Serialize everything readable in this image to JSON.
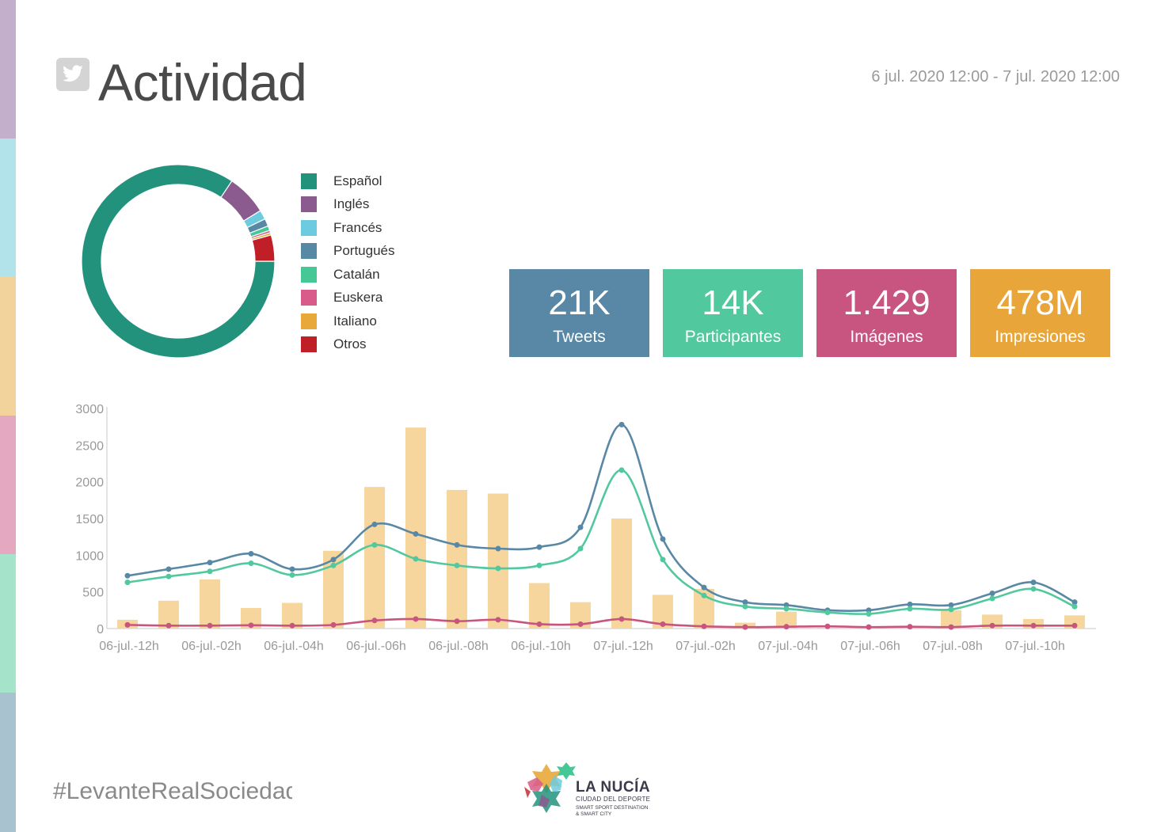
{
  "header": {
    "title": "Actividad",
    "date_range": "6 jul. 2020 12:00 - 7 jul. 2020 12:00",
    "icon": "twitter-icon"
  },
  "side_strip_colors": [
    "#c3aecb",
    "#b3e3ea",
    "#f2d39c",
    "#e4a9c0",
    "#a6e3cb",
    "#a9c2d0"
  ],
  "languages": {
    "type": "pie",
    "items": [
      {
        "label": "Español",
        "value": 86.5,
        "color": "#22927d"
      },
      {
        "label": "Inglés",
        "value": 7,
        "color": "#8b5a8e"
      },
      {
        "label": "Francés",
        "value": 1.6,
        "color": "#6ccbdf"
      },
      {
        "label": "Portugués",
        "value": 1.3,
        "color": "#5788a4"
      },
      {
        "label": "Catalán",
        "value": 0.8,
        "color": "#45c896"
      },
      {
        "label": "Euskera",
        "value": 0.4,
        "color": "#d95b8a"
      },
      {
        "label": "Italiano",
        "value": 0.4,
        "color": "#e8a83a"
      },
      {
        "label": "Otros",
        "value": 4.5,
        "color": "#c11f27"
      }
    ]
  },
  "kpis": [
    {
      "value": "21K",
      "label": "Tweets",
      "color": "#5888a5"
    },
    {
      "value": "14K",
      "label": "Participantes",
      "color": "#52c89e"
    },
    {
      "value": "1.429",
      "label": "Imágenes",
      "color": "#c8557f"
    },
    {
      "value": "478M",
      "label": "Impresiones",
      "color": "#e8a63a"
    }
  ],
  "chart_data": {
    "type": "bar",
    "yticks": [
      0,
      500,
      1000,
      1500,
      2000,
      2500,
      3000
    ],
    "ylim": [
      0,
      3000
    ],
    "tick_labels": [
      "06-jul.-12h",
      "06-jul.-02h",
      "06-jul.-04h",
      "06-jul.-06h",
      "06-jul.-08h",
      "06-jul.-10h",
      "07-jul.-12h",
      "07-jul.-02h",
      "07-jul.-04h",
      "07-jul.-06h",
      "07-jul.-08h",
      "07-jul.-10h"
    ],
    "bars": [
      120,
      380,
      670,
      280,
      350,
      1060,
      1930,
      2740,
      1890,
      1840,
      620,
      360,
      1500,
      460,
      540,
      80,
      230,
      10,
      20,
      30,
      250,
      190,
      130,
      180
    ],
    "series": [
      {
        "color": "#5888a5",
        "values": [
          720,
          810,
          900,
          1020,
          810,
          940,
          1420,
          1290,
          1140,
          1090,
          1110,
          1380,
          2780,
          1220,
          560,
          360,
          320,
          250,
          250,
          330,
          320,
          480,
          630,
          360
        ]
      },
      {
        "color": "#52c89e",
        "values": [
          630,
          710,
          780,
          890,
          730,
          860,
          1140,
          950,
          860,
          820,
          860,
          1090,
          2160,
          940,
          450,
          300,
          270,
          220,
          200,
          270,
          260,
          410,
          540,
          300
        ]
      },
      {
        "color": "#c8557f",
        "values": [
          50,
          40,
          40,
          45,
          40,
          50,
          110,
          130,
          100,
          120,
          60,
          60,
          130,
          60,
          30,
          20,
          25,
          30,
          20,
          25,
          20,
          40,
          40,
          40
        ]
      }
    ]
  },
  "footer": {
    "hashtag": "#LevanteRealSociedad",
    "logo_title": "LA NUCÍA",
    "logo_sub1": "CIUDAD DEL DEPORTE",
    "logo_sub2": "SMART SPORT DESTINATION",
    "logo_sub3": "& SMART CITY"
  }
}
